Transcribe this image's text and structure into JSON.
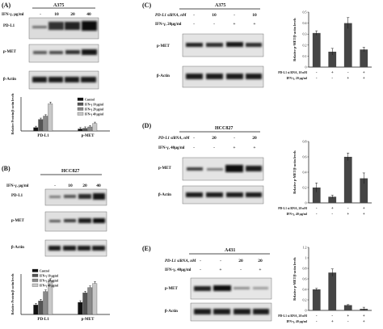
{
  "panelA": {
    "label": "(A)",
    "cell_line": "A375",
    "dose_label": "IFN-γ, μg/ml",
    "doses": [
      "-",
      "10",
      "20",
      "40"
    ],
    "rows": [
      "PD-L1",
      "p-MET",
      "β-Actin"
    ],
    "chart_data": {
      "type": "bar",
      "categories": [
        "PD-L1",
        "p-MET"
      ],
      "ylabel": "Relative Protein/β-actin levels",
      "ylim": [
        0,
        2.5
      ],
      "legend_position": "top-right",
      "series": [
        {
          "name": "Control",
          "color": "#111111",
          "values": [
            0.25,
            0.15
          ]
        },
        {
          "name": "IFN-γ 10 μg/ml",
          "color": "#555555",
          "values": [
            0.85,
            0.2
          ]
        },
        {
          "name": "IFN-γ 20 μg/ml",
          "color": "#8a8a8a",
          "values": [
            1.1,
            0.3
          ]
        },
        {
          "name": "IFN-γ 40 μg/ml",
          "color": "#c8c8c8",
          "values": [
            2.0,
            0.55
          ]
        }
      ]
    }
  },
  "panelB": {
    "label": "(B)",
    "cell_line": "HCC827",
    "dose_label": "IFN-γ, μg/ml",
    "doses": [
      "-",
      "10",
      "20",
      "40"
    ],
    "rows": [
      "PD-L1",
      "p-MET",
      "β-Actin"
    ],
    "chart_data": {
      "type": "bar",
      "categories": [
        "PD-L1",
        "p-MET"
      ],
      "ylabel": "Relative Protein/β-actin levels",
      "ylim": [
        0,
        1.5
      ],
      "legend_position": "top-left",
      "series": [
        {
          "name": "Control",
          "color": "#111111",
          "values": [
            0.35,
            0.45
          ]
        },
        {
          "name": "IFN-γ 10 μg/ml",
          "color": "#555555",
          "values": [
            0.5,
            0.8
          ]
        },
        {
          "name": "IFN-γ 20 μg/ml",
          "color": "#8a8a8a",
          "values": [
            0.85,
            1.0
          ]
        },
        {
          "name": "IFN-γ 40 μg/ml",
          "color": "#c8c8c8",
          "values": [
            1.25,
            1.15
          ]
        }
      ]
    }
  },
  "panelC": {
    "label": "(C)",
    "cell_line": "A375",
    "cond1_label": "PD-L1 siRNA, nM",
    "cond1": [
      "-",
      "10",
      "-",
      "10"
    ],
    "cond2_label": "IFN-γ, 20μg/ml",
    "cond2": [
      "-",
      "-",
      "+",
      "+"
    ],
    "rows": [
      "p-MET",
      "β-Actin"
    ],
    "chart_data": {
      "type": "bar",
      "categories": [
        "1",
        "2",
        "3",
        "4"
      ],
      "ylabel": "Relative p-MET/β-actin levels",
      "ylim": [
        0,
        0.5
      ],
      "yticks": [
        "0",
        "0.1",
        "0.2",
        "0.3",
        "0.4",
        "0.5"
      ],
      "cond1_label": "PD-L1 si RNA, 10 nM",
      "cond1": [
        "-",
        "+",
        "-",
        "+"
      ],
      "cond2_label": "IFN-γ, 20 μg/ml",
      "cond2": [
        "-",
        "-",
        "+",
        "+"
      ],
      "values": [
        0.31,
        0.14,
        0.4,
        0.16
      ],
      "errors": [
        0.02,
        0.03,
        0.05,
        0.02
      ]
    }
  },
  "panelD": {
    "label": "(D)",
    "cell_line": "HCC827",
    "cond1_label": "PD-L1 siRNA, nM",
    "cond1": [
      "-",
      "20",
      "-",
      "20"
    ],
    "cond2_label": "IFN-γ, 40μg/ml",
    "cond2": [
      "-",
      "-",
      "+",
      "+"
    ],
    "rows": [
      "p-MET",
      "β-Actin"
    ],
    "chart_data": {
      "type": "bar",
      "categories": [
        "1",
        "2",
        "3",
        "4"
      ],
      "ylabel": "Relative p-MET/β-actin levels",
      "ylim": [
        0,
        0.8
      ],
      "yticks": [
        "0",
        "0.2",
        "0.4",
        "0.6",
        "0.8"
      ],
      "cond1_label": "PD-L1 si RNA, 20 nM",
      "cond1": [
        "-",
        "+",
        "-",
        "+"
      ],
      "cond2_label": "IFN-γ, 40 μg/ml",
      "cond2": [
        "-",
        "-",
        "+",
        "+"
      ],
      "values": [
        0.2,
        0.08,
        0.6,
        0.32
      ],
      "errors": [
        0.06,
        0.02,
        0.05,
        0.07
      ]
    }
  },
  "panelE": {
    "label": "(E)",
    "cell_line": "A431",
    "cond1_label": "PD-L1 siRNA, nM",
    "cond1": [
      "-",
      "-",
      "20",
      "20"
    ],
    "cond2_label": "IFN-γ, 40μg/ml",
    "cond2": [
      "-",
      "+",
      "-",
      "+"
    ],
    "rows": [
      "p-MET",
      "β-Actin"
    ],
    "chart_data": {
      "type": "bar",
      "categories": [
        "1",
        "2",
        "3",
        "4"
      ],
      "ylabel": "Relative p-MET/β-actin levels",
      "ylim": [
        0,
        1.2
      ],
      "yticks": [
        "0",
        "0.2",
        "0.4",
        "0.6",
        "0.8",
        "1",
        "1.2"
      ],
      "cond1_label": "PD-L1 si RNA, 20 nM",
      "cond1": [
        "-",
        "-",
        "+",
        "+"
      ],
      "cond2_label": "IFN-γ, 40 μg/ml",
      "cond2": [
        "-",
        "+",
        "-",
        "+"
      ],
      "values": [
        0.4,
        0.72,
        0.1,
        0.03
      ],
      "errors": [
        0.02,
        0.07,
        0.01,
        0.03
      ]
    }
  }
}
